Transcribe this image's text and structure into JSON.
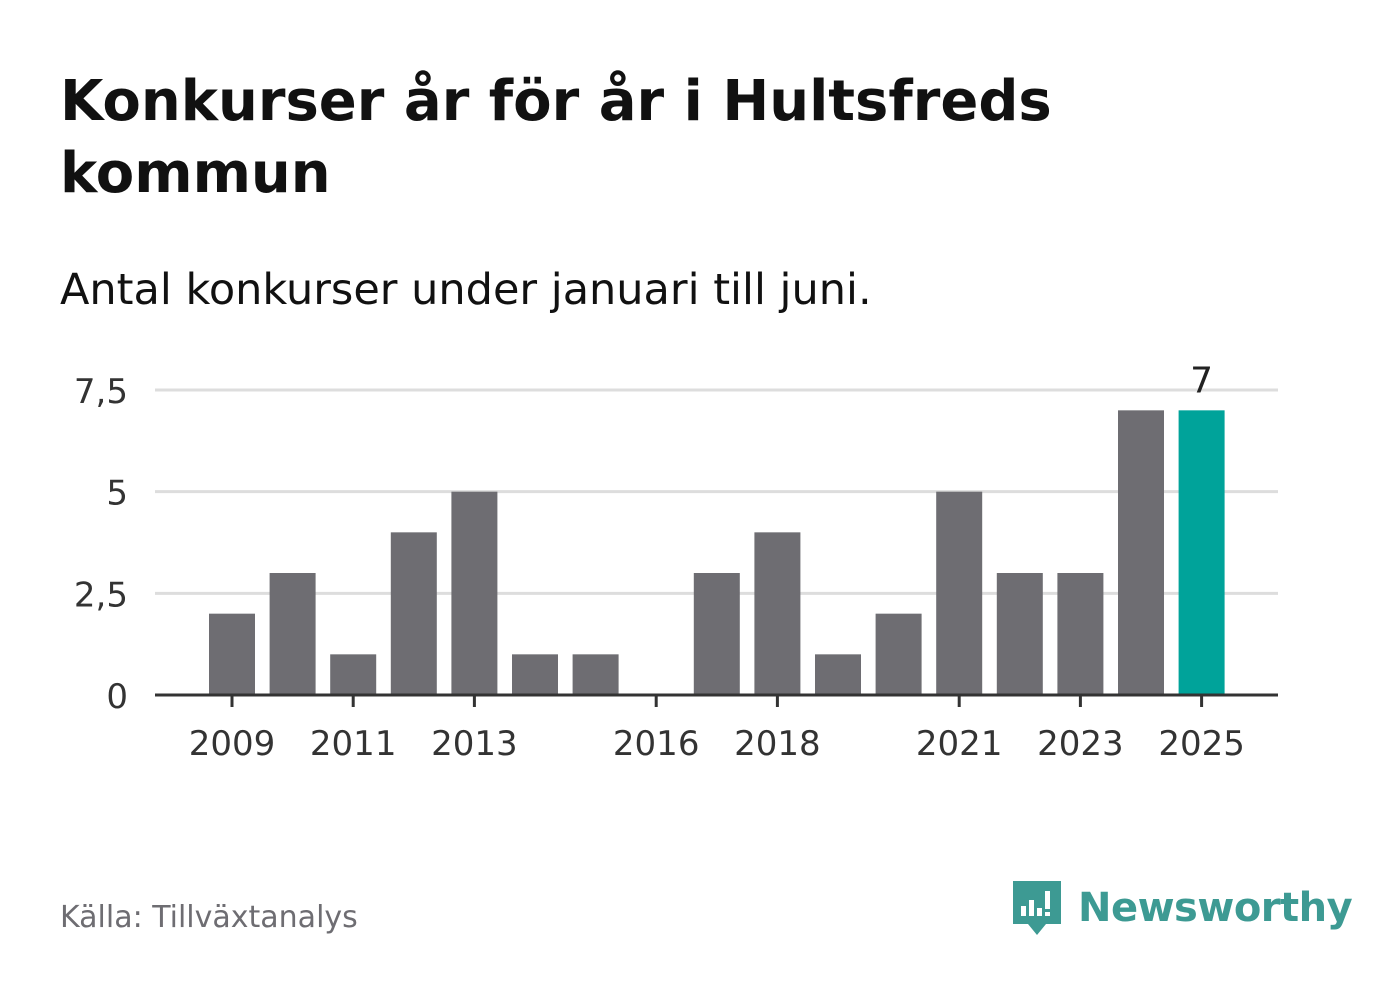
{
  "title": "Konkurser år för år i Hultsfreds kommun",
  "subtitle": "Antal konkurser under januari till juni.",
  "source": "Källa: Tillväxtanalys",
  "brand": {
    "name": "Newsworthy",
    "icon": "newsworthy-logo-icon",
    "color": "#3d9a93"
  },
  "chart_data": {
    "type": "bar",
    "categories": [
      "2009",
      "2010",
      "2011",
      "2012",
      "2013",
      "2014",
      "2015",
      "2016",
      "2017",
      "2018",
      "2019",
      "2020",
      "2021",
      "2022",
      "2023",
      "2024",
      "2025"
    ],
    "values": [
      2,
      3,
      1,
      4,
      5,
      1,
      1,
      0,
      3,
      4,
      1,
      2,
      5,
      3,
      3,
      7,
      7
    ],
    "x_tick_labels": [
      "2009",
      "2011",
      "2013",
      "2016",
      "2018",
      "2021",
      "2023",
      "2025"
    ],
    "y_ticks": [
      0,
      2.5,
      5,
      7.5
    ],
    "y_tick_labels": [
      "0",
      "2,5",
      "5",
      "7,5"
    ],
    "ylim": [
      0,
      7.5
    ],
    "xlabel": "",
    "ylabel": "",
    "grid": true,
    "highlight_index": 16,
    "highlight_label": "7",
    "colors": {
      "bar": "#6e6d72",
      "highlight": "#00a39a",
      "grid": "#dddddd",
      "axis": "#333333",
      "text": "#333333"
    }
  }
}
